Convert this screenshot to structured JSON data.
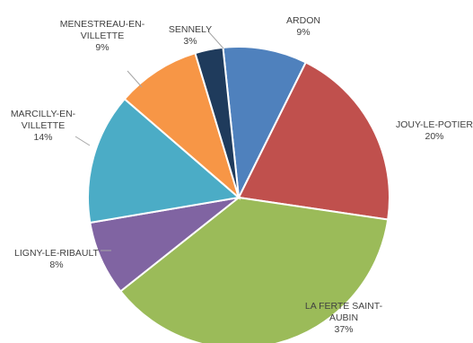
{
  "chart_data": {
    "type": "pie",
    "title": "",
    "legend": "none",
    "slices": [
      {
        "name": "ARDON",
        "value": 9,
        "label": "9%",
        "color": "#4f81bd"
      },
      {
        "name": "JOUY-LE-POTIER",
        "value": 20,
        "label": "20%",
        "color": "#c0504d"
      },
      {
        "name": "LA FERTE SAINT-AUBIN",
        "value": 37,
        "label": "37%",
        "color": "#9bbb59"
      },
      {
        "name": "LIGNY-LE-RIBAULT",
        "value": 8,
        "label": "8%",
        "color": "#8064a2"
      },
      {
        "name": "MARCILLY-EN-VILLETTE",
        "value": 14,
        "label": "14%",
        "color": "#4bacc6"
      },
      {
        "name": "MENESTREAU-EN-VILLETTE",
        "value": 9,
        "label": "9%",
        "color": "#f79646"
      },
      {
        "name": "SENNELY",
        "value": 3,
        "label": "3%",
        "color": "#1f3b5c"
      }
    ]
  }
}
